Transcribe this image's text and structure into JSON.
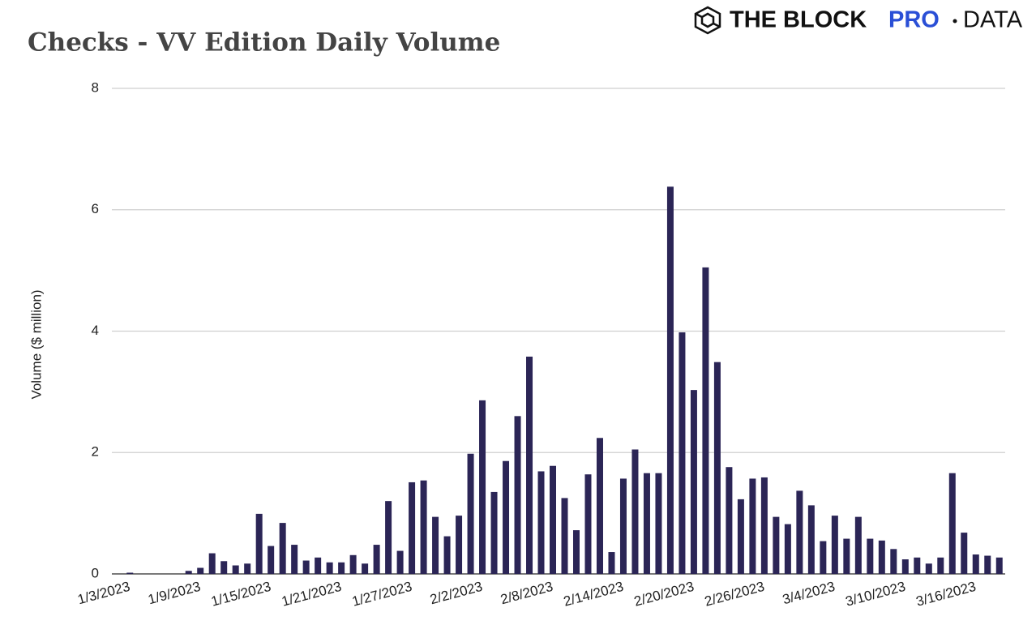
{
  "logo": {
    "brand": "THE BLOCK",
    "tier": "PRO",
    "product": "DATA"
  },
  "chart_data": {
    "type": "bar",
    "title": "Checks - VV Edition Daily Volume",
    "y_label": "Volume ($ million)",
    "categories": [
      "1/3/2023",
      null,
      null,
      null,
      null,
      null,
      "1/9/2023",
      null,
      null,
      null,
      null,
      null,
      "1/15/2023",
      null,
      null,
      null,
      null,
      null,
      "1/21/2023",
      null,
      null,
      null,
      null,
      null,
      "1/27/2023",
      null,
      null,
      null,
      null,
      null,
      "2/2/2023",
      null,
      null,
      null,
      null,
      null,
      "2/8/2023",
      null,
      null,
      null,
      null,
      null,
      "2/14/2023",
      null,
      null,
      null,
      null,
      null,
      "2/20/2023",
      null,
      null,
      null,
      null,
      null,
      "2/26/2023",
      null,
      null,
      null,
      null,
      null,
      "3/4/2023",
      null,
      null,
      null,
      null,
      null,
      "3/10/2023",
      null,
      null,
      null,
      null,
      null,
      "3/16/2023",
      null,
      null
    ],
    "values": [
      0.02,
      0,
      0,
      0,
      0,
      0.05,
      0.1,
      0.34,
      0.21,
      0.14,
      0.17,
      0.99,
      0.46,
      0.84,
      0.48,
      0.22,
      0.27,
      0.19,
      0.19,
      0.31,
      0.17,
      0.48,
      1.2,
      0.38,
      1.51,
      1.54,
      0.94,
      0.62,
      0.96,
      1.98,
      2.86,
      1.35,
      1.86,
      2.6,
      3.58,
      1.69,
      1.78,
      1.25,
      0.72,
      1.64,
      2.24,
      0.36,
      1.57,
      2.05,
      1.66,
      1.66,
      6.38,
      3.98,
      3.03,
      5.05,
      3.49,
      1.76,
      1.23,
      1.57,
      1.59,
      0.94,
      0.82,
      1.37,
      1.13,
      0.54,
      0.96,
      0.58,
      0.94,
      0.58,
      0.55,
      0.41,
      0.24,
      0.27,
      0.17,
      0.27,
      1.66,
      0.68,
      0.32,
      0.3,
      0.27
    ],
    "color": "#2b2556",
    "ylim": [
      0,
      8
    ],
    "yticks": [
      0,
      2,
      4,
      6,
      8
    ],
    "grid": true
  }
}
